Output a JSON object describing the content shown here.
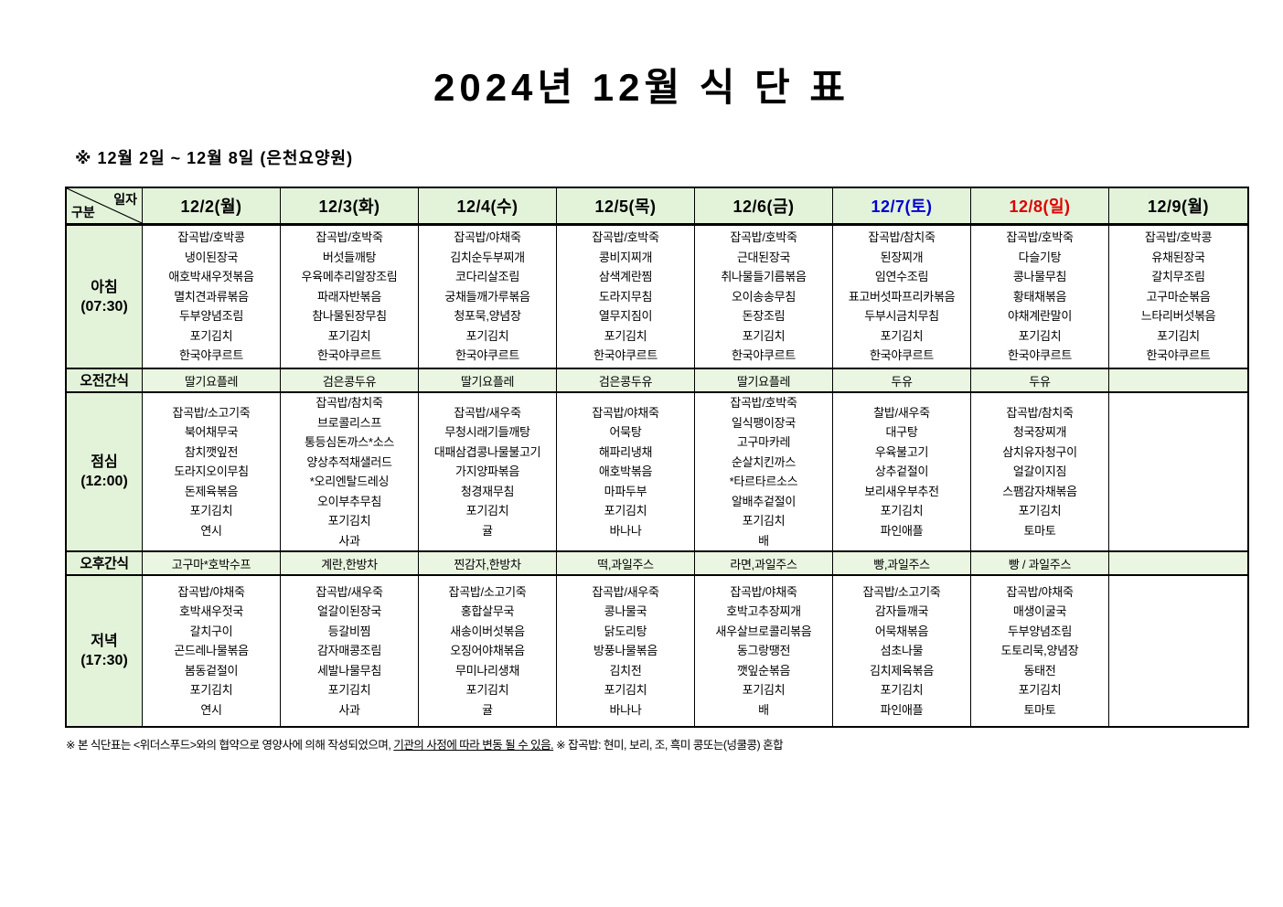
{
  "title": "2024년 12월 식 단 표",
  "subtitle": "※  12월 2일 ~ 12월 8일 (은천요양원)",
  "corner": {
    "top": "일자",
    "bottom": "구분"
  },
  "colors": {
    "header_green": "#e3f3da",
    "snack_row_green": "#eaf6e1",
    "weekday_black": "#000000",
    "saturday_blue": "#0000d0",
    "sunday_red": "#dd0000"
  },
  "columns": [
    {
      "label": "12/2(월)",
      "color": "#000000"
    },
    {
      "label": "12/3(화)",
      "color": "#000000"
    },
    {
      "label": "12/4(수)",
      "color": "#000000"
    },
    {
      "label": "12/5(목)",
      "color": "#000000"
    },
    {
      "label": "12/6(금)",
      "color": "#000000"
    },
    {
      "label": "12/7(토)",
      "color": "#0000d0"
    },
    {
      "label": "12/8(일)",
      "color": "#dd0000"
    },
    {
      "label": "12/9(월)",
      "color": "#000000"
    }
  ],
  "rows": [
    {
      "type": "meal",
      "label": "아침",
      "time": "(07:30)",
      "cells": [
        [
          "잡곡밥/호박콩",
          "냉이된장국",
          "애호박새우젓볶음",
          "멸치견과류볶음",
          "두부양념조림",
          "포기김치",
          "한국야쿠르트"
        ],
        [
          "잡곡밥/호박죽",
          "버섯들깨탕",
          "우육메추리알장조림",
          "파래자반볶음",
          "참나물된장무침",
          "포기김치",
          "한국야쿠르트"
        ],
        [
          "잡곡밥/야채죽",
          "김치순두부찌개",
          "코다리살조림",
          "궁채들깨가루볶음",
          "청포묵,양념장",
          "포기김치",
          "한국야쿠르트"
        ],
        [
          "잡곡밥/호박죽",
          "콩비지찌개",
          "삼색계란찜",
          "도라지무침",
          "열무지짐이",
          "포기김치",
          "한국야쿠르트"
        ],
        [
          "잡곡밥/호박죽",
          "근대된장국",
          "취나물들기름볶음",
          "오이송송무침",
          "돈장조림",
          "포기김치",
          "한국야쿠르트"
        ],
        [
          "잡곡밥/참치죽",
          "된장찌개",
          "임연수조림",
          "표고버섯파프리카볶음",
          "두부시금치무침",
          "포기김치",
          "한국야쿠르트"
        ],
        [
          "잡곡밥/호박죽",
          "다슬기탕",
          "콩나물무침",
          "황태채볶음",
          "야채계란말이",
          "포기김치",
          "한국야쿠르트"
        ],
        [
          "잡곡밥/호박콩",
          "유채된장국",
          "갈치무조림",
          "고구마순볶음",
          "느타리버섯볶음",
          "포기김치",
          "한국야쿠르트"
        ]
      ]
    },
    {
      "type": "snack",
      "label": "오전간식",
      "cells": [
        "딸기요플레",
        "검은콩두유",
        "딸기요플레",
        "검은콩두유",
        "딸기요플레",
        "두유",
        "두유",
        ""
      ]
    },
    {
      "type": "meal",
      "label": "점심",
      "time": "(12:00)",
      "cells": [
        [
          "잡곡밥/소고기죽",
          "북어채무국",
          "참치깻잎전",
          "도라지오이무침",
          "돈제육볶음",
          "포기김치",
          "연시"
        ],
        [
          "잡곡밥/참치죽",
          "브로콜리스프",
          "통등심돈까스*소스",
          "양상추적채샐러드",
          "*오리엔탈드레싱",
          "오이부추무침",
          "포기김치",
          "사과"
        ],
        [
          "잡곡밥/새우죽",
          "무청시래기들깨탕",
          "대패삼겹콩나물불고기",
          "가지양파볶음",
          "청경재무침",
          "포기김치",
          "귤"
        ],
        [
          "잡곡밥/야채죽",
          "어묵탕",
          "해파리냉채",
          "애호박볶음",
          "마파두부",
          "포기김치",
          "바나나"
        ],
        [
          "잡곡밥/호박죽",
          "일식팽이장국",
          "고구마카레",
          "순살치킨까스",
          "*타르타르소스",
          "알배추겉절이",
          "포기김치",
          "배"
        ],
        [
          "찰밥/새우죽",
          "대구탕",
          "우육불고기",
          "상추겉절이",
          "보리새우부추전",
          "포기김치",
          "파인애플"
        ],
        [
          "잡곡밥/참치죽",
          "청국장찌개",
          "삼치유자청구이",
          "얼갈이지짐",
          "스팸감자채볶음",
          "포기김치",
          "토마토"
        ],
        []
      ]
    },
    {
      "type": "snack",
      "label": "오후간식",
      "cells": [
        "고구마*호박수프",
        "계란,한방차",
        "찐감자,한방차",
        "떡,과일주스",
        "라면,과일주스",
        "빵,과일주스",
        "빵 / 과일주스",
        ""
      ]
    },
    {
      "type": "meal",
      "label": "저녁",
      "time": "(17:30)",
      "cells": [
        [
          "잡곡밥/야채죽",
          "호박새우젓국",
          "갈치구이",
          "곤드레나물볶음",
          "봄동겉절이",
          "포기김치",
          "연시"
        ],
        [
          "잡곡밥/새우죽",
          "얼갈이된장국",
          "등갈비찜",
          "감자매콩조림",
          "세발나물무침",
          "포기김치",
          "사과"
        ],
        [
          "잡곡밥/소고기죽",
          "홍합살무국",
          "새송이버섯볶음",
          "오징어야채볶음",
          "무미나리생채",
          "포기김치",
          "귤"
        ],
        [
          "잡곡밥/새우죽",
          "콩나물국",
          "닭도리탕",
          "방풍나물볶음",
          "김치전",
          "포기김치",
          "바나나"
        ],
        [
          "잡곡밥/야채죽",
          "호박고추장찌개",
          "새우살브로콜리볶음",
          "동그랑땡전",
          "깻잎순볶음",
          "포기김치",
          "배"
        ],
        [
          "잡곡밥/소고기죽",
          "감자들깨국",
          "어묵채볶음",
          "섬초나물",
          "김치제육볶음",
          "포기김치",
          "파인애플"
        ],
        [
          "잡곡밥/야채죽",
          "매생이굴국",
          "두부양념조림",
          "도토리묵,양념장",
          "동태전",
          "포기김치",
          "토마토"
        ],
        []
      ]
    }
  ],
  "footer": {
    "part1": "※  본 식단표는 <위더스푸드>와의 협약으로 영양사에 의해 작성되었으며, ",
    "underlined": "기관의 사정에 따라 변동 될 수 있음.",
    "part2": " ※ 잡곡밥: 현미, 보리, 조, 흑미 콩또는(넝쿨콩) 혼합"
  }
}
